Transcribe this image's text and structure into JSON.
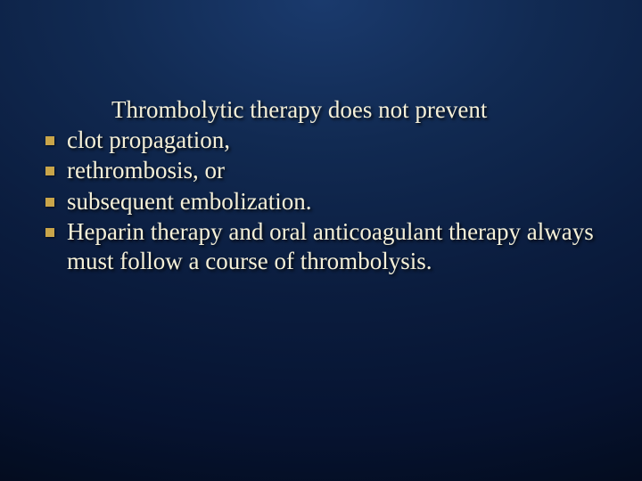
{
  "slide": {
    "intro": "Thrombolytic therapy does not prevent",
    "bullets": [
      "clot propagation,",
      " rethrombosis, or",
      " subsequent embolization.",
      " Heparin therapy and oral anticoagulant therapy always must follow a course of thrombolysis."
    ],
    "text_color": "#f5f0d8",
    "bullet_color": "#c9a54a",
    "font_size_pt": 20,
    "background_gradient": [
      "#1a3a6d",
      "#020815"
    ]
  }
}
